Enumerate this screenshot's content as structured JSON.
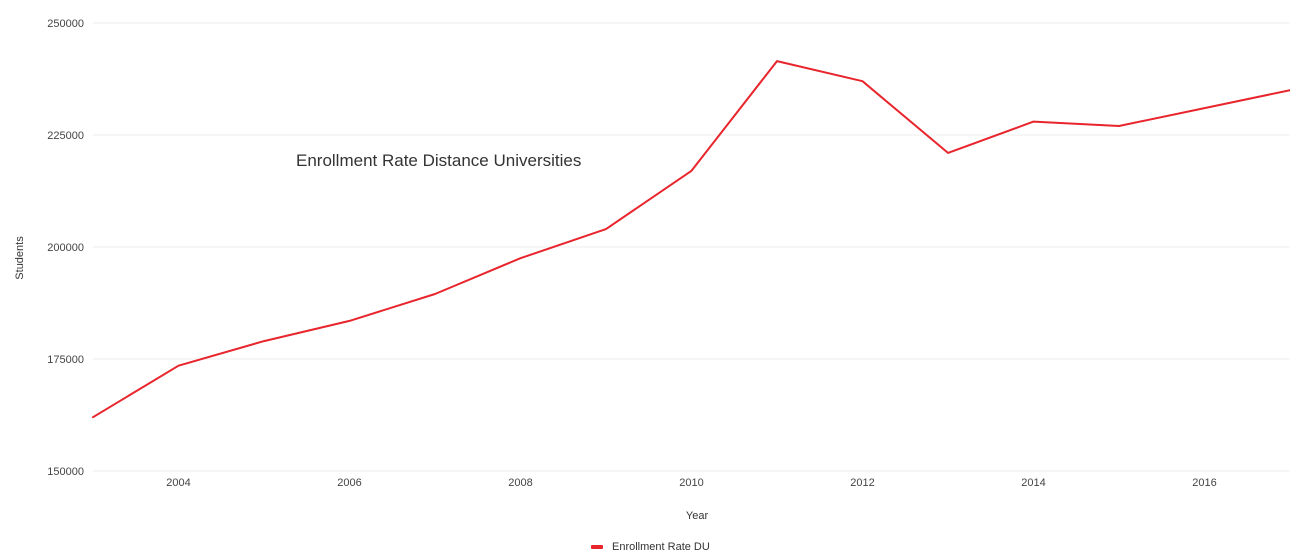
{
  "chart_data": {
    "type": "line",
    "title": "Enrollment Rate Distance Universities",
    "xlabel": "Year",
    "ylabel": "Students",
    "x": [
      2003,
      2004,
      2005,
      2006,
      2007,
      2008,
      2009,
      2010,
      2011,
      2012,
      2013,
      2014,
      2015,
      2016,
      2017
    ],
    "series": [
      {
        "name": "Enrollment Rate DU",
        "color": "#e8252c",
        "values": [
          162000,
          173500,
          179000,
          183500,
          189500,
          197500,
          204000,
          217000,
          241500,
          237000,
          221000,
          228000,
          227000,
          231000,
          235000
        ]
      }
    ],
    "xlim": [
      2003,
      2017
    ],
    "ylim": [
      150000,
      250000
    ],
    "x_ticks": [
      "2004",
      "2006",
      "2008",
      "2010",
      "2012",
      "2014",
      "2016"
    ],
    "y_ticks": [
      "150000",
      "175000",
      "200000",
      "225000",
      "250000"
    ],
    "grid": "horizontal",
    "legend_position": "bottom-center"
  }
}
